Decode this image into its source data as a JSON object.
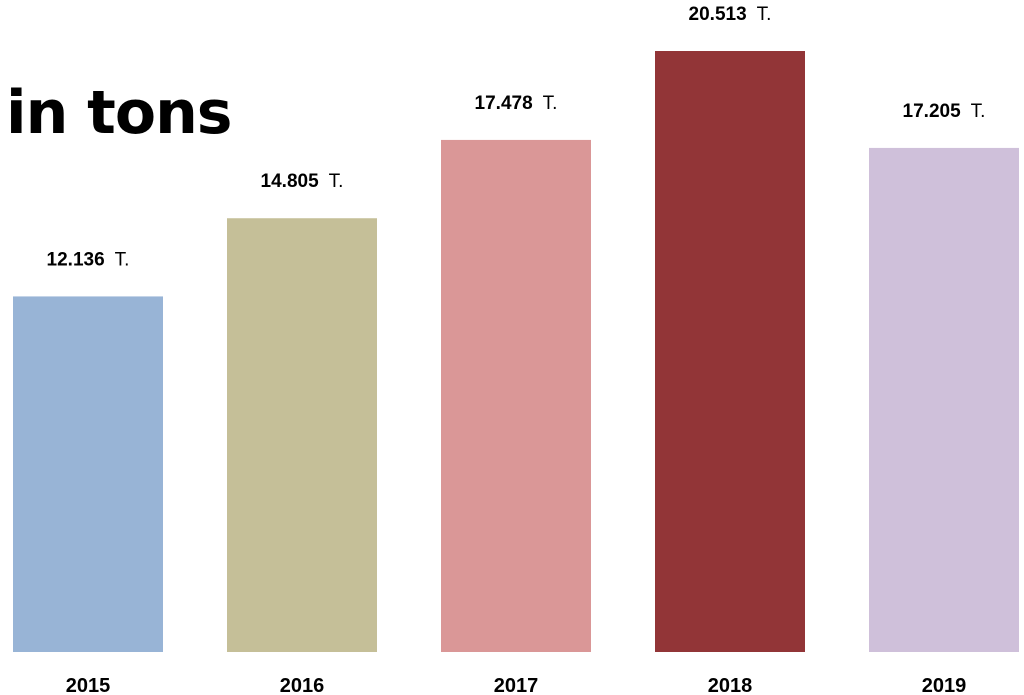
{
  "chart_data": {
    "type": "bar",
    "title": "in tons",
    "categories": [
      "2015",
      "2016",
      "2017",
      "2018",
      "2019"
    ],
    "values": [
      12.136,
      14.805,
      17.478,
      20.513,
      17.205
    ],
    "value_labels": [
      "12.136",
      "14.805",
      "17.478",
      "20.513",
      "17.205"
    ],
    "value_unit": "T.",
    "colors": [
      "#98b4d6",
      "#c5bf98",
      "#da9797",
      "#923537",
      "#cfc0da"
    ],
    "xlabel": "",
    "ylabel": "",
    "ylim": [
      0,
      20.513
    ],
    "grid": false,
    "legend": "none"
  }
}
